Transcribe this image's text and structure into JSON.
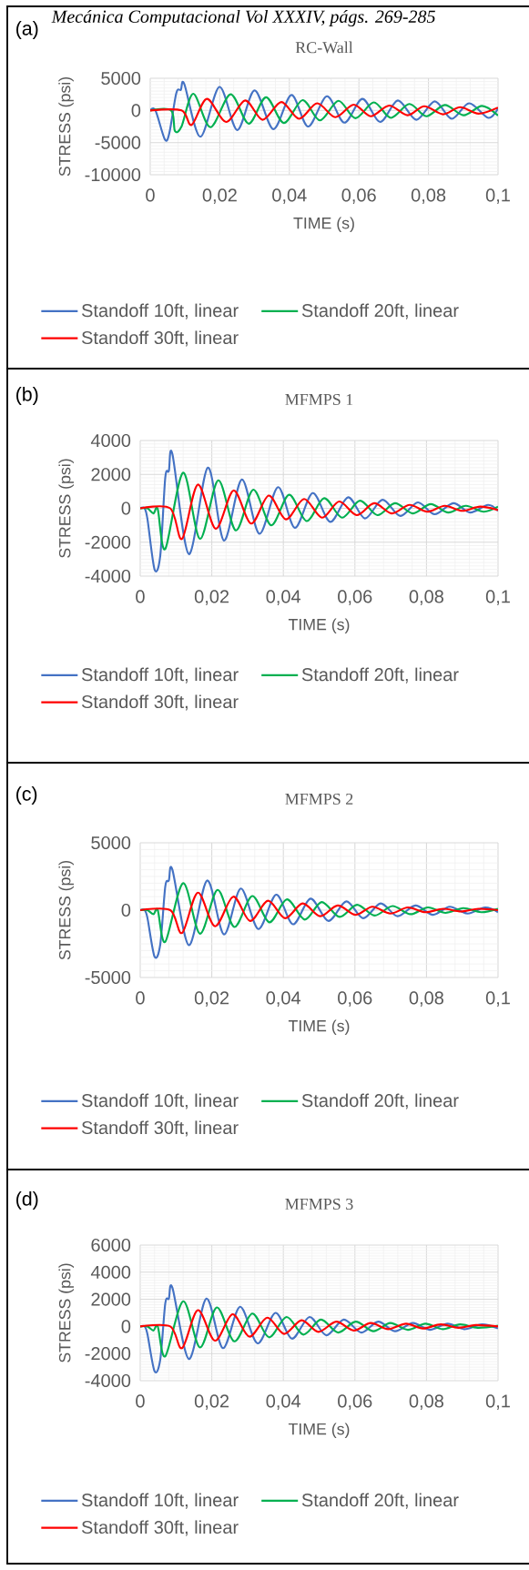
{
  "chart_data": [
    {
      "type": "line",
      "title": "RC-Wall",
      "xlabel": "TIME (s)",
      "ylabel": "STRESS (psi)",
      "annotations": [
        "(a)",
        "Mecánica Computacional Vol XXXIV, págs. 269-285"
      ],
      "xlim": [
        0,
        0.1
      ],
      "xticks": [
        0,
        {
          "value": 0.02,
          "label": "0,02"
        },
        {
          "value": 0.04,
          "label": "0,04"
        },
        {
          "value": 0.06,
          "label": "0,06"
        },
        {
          "value": 0.08,
          "label": "0,08"
        },
        {
          "value": 0.1,
          "label": "0,1"
        }
      ],
      "ylim": [
        -10000,
        5000
      ],
      "yticks": [
        -10000,
        -5000,
        0,
        5000
      ],
      "grid": true,
      "legend": "bottom",
      "marker": "none",
      "series": [
        {
          "name": "Standoff 10ft, linear",
          "color": "#4472c4",
          "x": [
            0,
            0.0015,
            0.0042,
            0.0055,
            0.0075,
            0.0088,
            0.0098,
            0.0144,
            0.0199,
            0.025,
            0.03,
            0.0354,
            0.0406,
            0.0454,
            0.0508,
            0.0558,
            0.061,
            0.0661,
            0.0712,
            0.0765,
            0.0818,
            0.0867,
            0.0917,
            0.0972,
            0.1
          ],
          "values": [
            0,
            0,
            -4500,
            -3500,
            2700,
            3200,
            4100,
            -4100,
            3650,
            -3050,
            3100,
            -2900,
            2400,
            -2500,
            2200,
            -1900,
            1800,
            -1800,
            1550,
            -1450,
            1400,
            -1300,
            1100,
            -1150,
            300
          ]
        },
        {
          "name": "Standoff 20ft, linear",
          "color": "#00b050",
          "x": [
            0,
            0.006,
            0.0071,
            0.009,
            0.0124,
            0.0173,
            0.0231,
            0.0283,
            0.0333,
            0.0384,
            0.0438,
            0.0488,
            0.0541,
            0.059,
            0.0643,
            0.0692,
            0.0745,
            0.0794,
            0.0847,
            0.0901,
            0.0954,
            0.1
          ],
          "values": [
            0,
            0,
            -3200,
            -2500,
            2600,
            -2600,
            2500,
            -2050,
            2050,
            -1950,
            1600,
            -1550,
            1500,
            -1200,
            1250,
            -1150,
            1000,
            -900,
            850,
            -750,
            700,
            -800
          ]
        },
        {
          "name": "Standoff 30ft, linear",
          "color": "#ff0000",
          "x": [
            0,
            0.009,
            0.0119,
            0.0163,
            0.0218,
            0.0273,
            0.0323,
            0.0377,
            0.0428,
            0.048,
            0.0532,
            0.0585,
            0.0634,
            0.0687,
            0.074,
            0.0788,
            0.0842,
            0.0891,
            0.0944,
            0.1
          ],
          "values": [
            0,
            0,
            -2250,
            1800,
            -1800,
            1550,
            -1450,
            1300,
            -1300,
            1100,
            -1050,
            900,
            -900,
            750,
            -750,
            650,
            -600,
            500,
            -500,
            450
          ]
        }
      ]
    },
    {
      "type": "line",
      "title": "MFMPS 1",
      "xlabel": "TIME (s)",
      "ylabel": "STRESS (psi)",
      "annotations": [
        "(b)"
      ],
      "xlim": [
        0,
        0.1
      ],
      "xticks": [
        0,
        {
          "value": 0.02,
          "label": "0,02"
        },
        {
          "value": 0.04,
          "label": "0,04"
        },
        {
          "value": 0.06,
          "label": "0,06"
        },
        {
          "value": 0.08,
          "label": "0,08"
        },
        {
          "value": 0.1,
          "label": "0,1"
        }
      ],
      "ylim": [
        -4000,
        4000
      ],
      "yticks": [
        -4000,
        -2000,
        0,
        2000,
        4000
      ],
      "grid": true,
      "legend": "bottom",
      "marker": "none",
      "series": [
        {
          "name": "Standoff 10ft, linear",
          "color": "#4472c4",
          "x": [
            0,
            0.0012,
            0.002,
            0.004,
            0.0056,
            0.007,
            0.008,
            0.009,
            0.0136,
            0.0189,
            0.0234,
            0.0284,
            0.0333,
            0.0385,
            0.0432,
            0.0482,
            0.0531,
            0.0581,
            0.0628,
            0.0677,
            0.0727,
            0.0776,
            0.0823,
            0.0875,
            0.0922,
            0.0972,
            0.1
          ],
          "values": [
            0,
            0,
            -600,
            -3600,
            -2800,
            1800,
            2200,
            3200,
            -2700,
            2400,
            -1900,
            1700,
            -1500,
            1250,
            -1150,
            900,
            -800,
            650,
            -600,
            500,
            -450,
            350,
            -350,
            300,
            -250,
            200,
            -150
          ]
        },
        {
          "name": "Standoff 20ft, linear",
          "color": "#00b050",
          "x": [
            0,
            0.002,
            0.0037,
            0.0049,
            0.007,
            0.012,
            0.0167,
            0.0218,
            0.0267,
            0.0316,
            0.0366,
            0.0416,
            0.0465,
            0.0514,
            0.0564,
            0.0614,
            0.0663,
            0.0712,
            0.0762,
            0.0812,
            0.0861,
            0.091,
            0.096,
            0.1
          ],
          "values": [
            0,
            0,
            -300,
            -50,
            -2400,
            2100,
            -1800,
            1650,
            -1300,
            1100,
            -1000,
            800,
            -750,
            600,
            -550,
            450,
            -400,
            300,
            -300,
            250,
            -250,
            150,
            -200,
            100
          ]
        },
        {
          "name": "Standoff 30ft, linear",
          "color": "#ff0000",
          "x": [
            0,
            0.0084,
            0.0117,
            0.0161,
            0.0211,
            0.0261,
            0.031,
            0.0359,
            0.0407,
            0.0458,
            0.0508,
            0.0556,
            0.0605,
            0.0654,
            0.0703,
            0.0753,
            0.0802,
            0.0851,
            0.09,
            0.095,
            0.1
          ],
          "values": [
            0,
            0,
            -1800,
            1400,
            -1200,
            1050,
            -900,
            750,
            -650,
            550,
            -550,
            400,
            -400,
            300,
            -300,
            200,
            -200,
            150,
            -150,
            100,
            -100
          ]
        }
      ]
    },
    {
      "type": "line",
      "title": "MFMPS 2",
      "xlabel": "TIME (s)",
      "ylabel": "STRESS (psi)",
      "annotations": [
        "(c)"
      ],
      "xlim": [
        0,
        0.1
      ],
      "xticks": [
        0,
        {
          "value": 0.02,
          "label": "0,02"
        },
        {
          "value": 0.04,
          "label": "0,04"
        },
        {
          "value": 0.06,
          "label": "0,06"
        },
        {
          "value": 0.08,
          "label": "0,08"
        },
        {
          "value": 0.1,
          "label": "0,1"
        }
      ],
      "ylim": [
        -5000,
        5000
      ],
      "yticks": [
        -5000,
        0,
        5000
      ],
      "grid": true,
      "legend": "bottom",
      "marker": "none",
      "series": [
        {
          "name": "Standoff 10ft, linear",
          "color": "#4472c4",
          "x": [
            0,
            0.0012,
            0.002,
            0.004,
            0.0056,
            0.007,
            0.008,
            0.009,
            0.0136,
            0.0187,
            0.0234,
            0.0281,
            0.033,
            0.038,
            0.0427,
            0.0476,
            0.0526,
            0.0576,
            0.0623,
            0.0672,
            0.0719,
            0.0769,
            0.0818,
            0.0865,
            0.0915,
            0.0964,
            0.1
          ],
          "values": [
            0,
            0,
            -550,
            -3450,
            -2550,
            1750,
            2200,
            3000,
            -2600,
            2200,
            -1800,
            1600,
            -1400,
            1150,
            -1050,
            850,
            -800,
            650,
            -600,
            500,
            -450,
            350,
            -350,
            250,
            -250,
            200,
            -150
          ]
        },
        {
          "name": "Standoff 20ft, linear",
          "color": "#00b050",
          "x": [
            0,
            0.002,
            0.0037,
            0.0049,
            0.007,
            0.012,
            0.0167,
            0.0216,
            0.0263,
            0.0313,
            0.0361,
            0.041,
            0.046,
            0.0507,
            0.0557,
            0.0606,
            0.0655,
            0.0705,
            0.0755,
            0.0804,
            0.0853,
            0.0903,
            0.0953,
            0.1
          ],
          "values": [
            0,
            0,
            -300,
            0,
            -2350,
            2000,
            -1750,
            1500,
            -1250,
            1050,
            -900,
            800,
            -700,
            600,
            -500,
            400,
            -400,
            300,
            -300,
            200,
            -200,
            150,
            -150,
            100
          ]
        },
        {
          "name": "Standoff 30ft, linear",
          "color": "#ff0000",
          "x": [
            0,
            0.0084,
            0.0117,
            0.0161,
            0.0209,
            0.026,
            0.0307,
            0.0357,
            0.0405,
            0.0454,
            0.0503,
            0.0552,
            0.0602,
            0.0649,
            0.0699,
            0.0748,
            0.0797,
            0.0847,
            0.0896,
            0.0945,
            0.1
          ],
          "values": [
            0,
            0,
            -1700,
            1300,
            -1200,
            1000,
            -800,
            700,
            -600,
            500,
            -450,
            350,
            -350,
            250,
            -250,
            200,
            -150,
            100,
            -100,
            100,
            0
          ]
        }
      ]
    },
    {
      "type": "line",
      "title": "MFMPS 3",
      "xlabel": "TIME (s)",
      "ylabel": "STRESS (psi)",
      "annotations": [
        "(d)"
      ],
      "xlim": [
        0,
        0.1
      ],
      "xticks": [
        0,
        {
          "value": 0.02,
          "label": "0,02"
        },
        {
          "value": 0.04,
          "label": "0,04"
        },
        {
          "value": 0.06,
          "label": "0,06"
        },
        {
          "value": 0.08,
          "label": "0,08"
        },
        {
          "value": 0.1,
          "label": "0,1"
        }
      ],
      "ylim": [
        -4000,
        6000
      ],
      "yticks": [
        -4000,
        -2000,
        0,
        2000,
        4000,
        6000
      ],
      "grid": true,
      "legend": "bottom",
      "marker": "none",
      "series": [
        {
          "name": "Standoff 10ft, linear",
          "color": "#4472c4",
          "x": [
            0,
            0.0012,
            0.002,
            0.004,
            0.0056,
            0.007,
            0.008,
            0.009,
            0.0136,
            0.0185,
            0.0231,
            0.0279,
            0.0328,
            0.0378,
            0.0424,
            0.0473,
            0.052,
            0.0569,
            0.0618,
            0.0665,
            0.0712,
            0.0762,
            0.0809,
            0.0859,
            0.0906,
            0.0955,
            0.1
          ],
          "values": [
            0,
            0,
            -550,
            -3300,
            -2450,
            1700,
            2050,
            2850,
            -2400,
            2050,
            -1600,
            1450,
            -1250,
            1000,
            -900,
            700,
            -650,
            500,
            -450,
            350,
            -350,
            250,
            -250,
            200,
            -200,
            150,
            -150
          ]
        },
        {
          "name": "Standoff 20ft, linear",
          "color": "#00b050",
          "x": [
            0,
            0.002,
            0.0037,
            0.0049,
            0.007,
            0.012,
            0.0167,
            0.0214,
            0.0263,
            0.0313,
            0.036,
            0.0409,
            0.0456,
            0.0505,
            0.0553,
            0.0602,
            0.0651,
            0.0699,
            0.0748,
            0.0797,
            0.0845,
            0.0894,
            0.0943,
            0.1
          ],
          "values": [
            0,
            0,
            -300,
            0,
            -2200,
            1850,
            -1550,
            1400,
            -1100,
            950,
            -800,
            700,
            -600,
            500,
            -450,
            350,
            -350,
            250,
            -250,
            200,
            -200,
            150,
            -100,
            50
          ]
        },
        {
          "name": "Standoff 30ft, linear",
          "color": "#ff0000",
          "x": [
            0,
            0.0084,
            0.0117,
            0.0161,
            0.0209,
            0.0258,
            0.0305,
            0.0355,
            0.0402,
            0.0451,
            0.0498,
            0.0548,
            0.0597,
            0.0644,
            0.0693,
            0.0743,
            0.079,
            0.084,
            0.0889,
            0.0938,
            0.1
          ],
          "values": [
            0,
            0,
            -1600,
            1200,
            -1050,
            900,
            -750,
            650,
            -550,
            450,
            -400,
            350,
            -300,
            250,
            -200,
            200,
            -150,
            150,
            -100,
            100,
            0
          ]
        }
      ]
    }
  ]
}
